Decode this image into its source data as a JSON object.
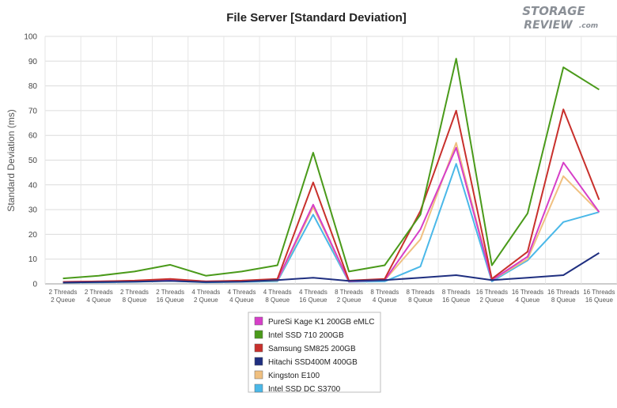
{
  "chart_data": {
    "type": "line",
    "title": "File Server [Standard Deviation]",
    "xlabel": "",
    "ylabel": "Standard Deviation (ms)",
    "ylim": [
      0,
      100
    ],
    "yticks": [
      "0",
      "10",
      "20",
      "30",
      "40",
      "50",
      "60",
      "70",
      "80",
      "90",
      "100"
    ],
    "grid": true,
    "legend_position": "bottom",
    "categories": [
      [
        "2 Threads",
        "2 Queue"
      ],
      [
        "2 Threads",
        "4 Queue"
      ],
      [
        "2 Threads",
        "8 Queue"
      ],
      [
        "2 Threads",
        "16 Queue"
      ],
      [
        "4 Threads",
        "2 Queue"
      ],
      [
        "4 Threads",
        "4 Queue"
      ],
      [
        "4 Threads",
        "8 Queue"
      ],
      [
        "4 Threads",
        "16 Queue"
      ],
      [
        "8 Threads",
        "2 Queue"
      ],
      [
        "8 Threads",
        "4 Queue"
      ],
      [
        "8 Threads",
        "8 Queue"
      ],
      [
        "8 Threads",
        "16 Queue"
      ],
      [
        "16 Threads",
        "2 Queue"
      ],
      [
        "16 Threads",
        "4 Queue"
      ],
      [
        "16 Threads",
        "8 Queue"
      ],
      [
        "16 Threads",
        "16 Queue"
      ]
    ],
    "series": [
      {
        "name": "PureSi Kage K1 200GB eMLC",
        "color": "#d63fc8",
        "values": [
          0.8,
          1.0,
          1.2,
          1.8,
          1.0,
          1.2,
          1.5,
          32,
          1.0,
          1.5,
          22,
          55,
          1.5,
          11,
          49,
          29
        ]
      },
      {
        "name": "Intel SSD 710 200GB",
        "color": "#4a9a1a",
        "values": [
          2.2,
          3.3,
          5.0,
          7.7,
          3.3,
          5.0,
          7.5,
          53,
          5.0,
          7.5,
          28,
          91,
          7.5,
          28.5,
          87.5,
          78.5
        ]
      },
      {
        "name": "Samsung SM825 200GB",
        "color": "#c8302c",
        "values": [
          0.8,
          1.0,
          1.3,
          2.0,
          1.0,
          1.3,
          2.0,
          41,
          1.3,
          2.0,
          29.5,
          70,
          2.0,
          13,
          70.5,
          34
        ]
      },
      {
        "name": "Hitachi SSD400M 400GB",
        "color": "#1f2f80",
        "values": [
          0.5,
          0.7,
          0.9,
          1.2,
          0.7,
          0.9,
          1.5,
          2.5,
          1.2,
          1.5,
          2.5,
          3.5,
          1.5,
          2.5,
          3.5,
          12.5
        ]
      },
      {
        "name": "Kingston E100",
        "color": "#f0c080",
        "values": [
          0.6,
          0.8,
          1.0,
          1.5,
          0.8,
          1.0,
          1.3,
          31,
          1.0,
          1.5,
          18,
          57,
          1.5,
          10,
          43.5,
          29
        ]
      },
      {
        "name": "Intel SSD DC S3700",
        "color": "#4ab8e8",
        "values": [
          0.5,
          0.6,
          0.8,
          1.2,
          0.6,
          0.8,
          1.0,
          28,
          0.8,
          1.0,
          7,
          48.5,
          1.0,
          9.5,
          25,
          29
        ]
      }
    ]
  },
  "logo": {
    "line1": "STORAGE",
    "line2": "REVIEW",
    "suffix": ".com"
  }
}
